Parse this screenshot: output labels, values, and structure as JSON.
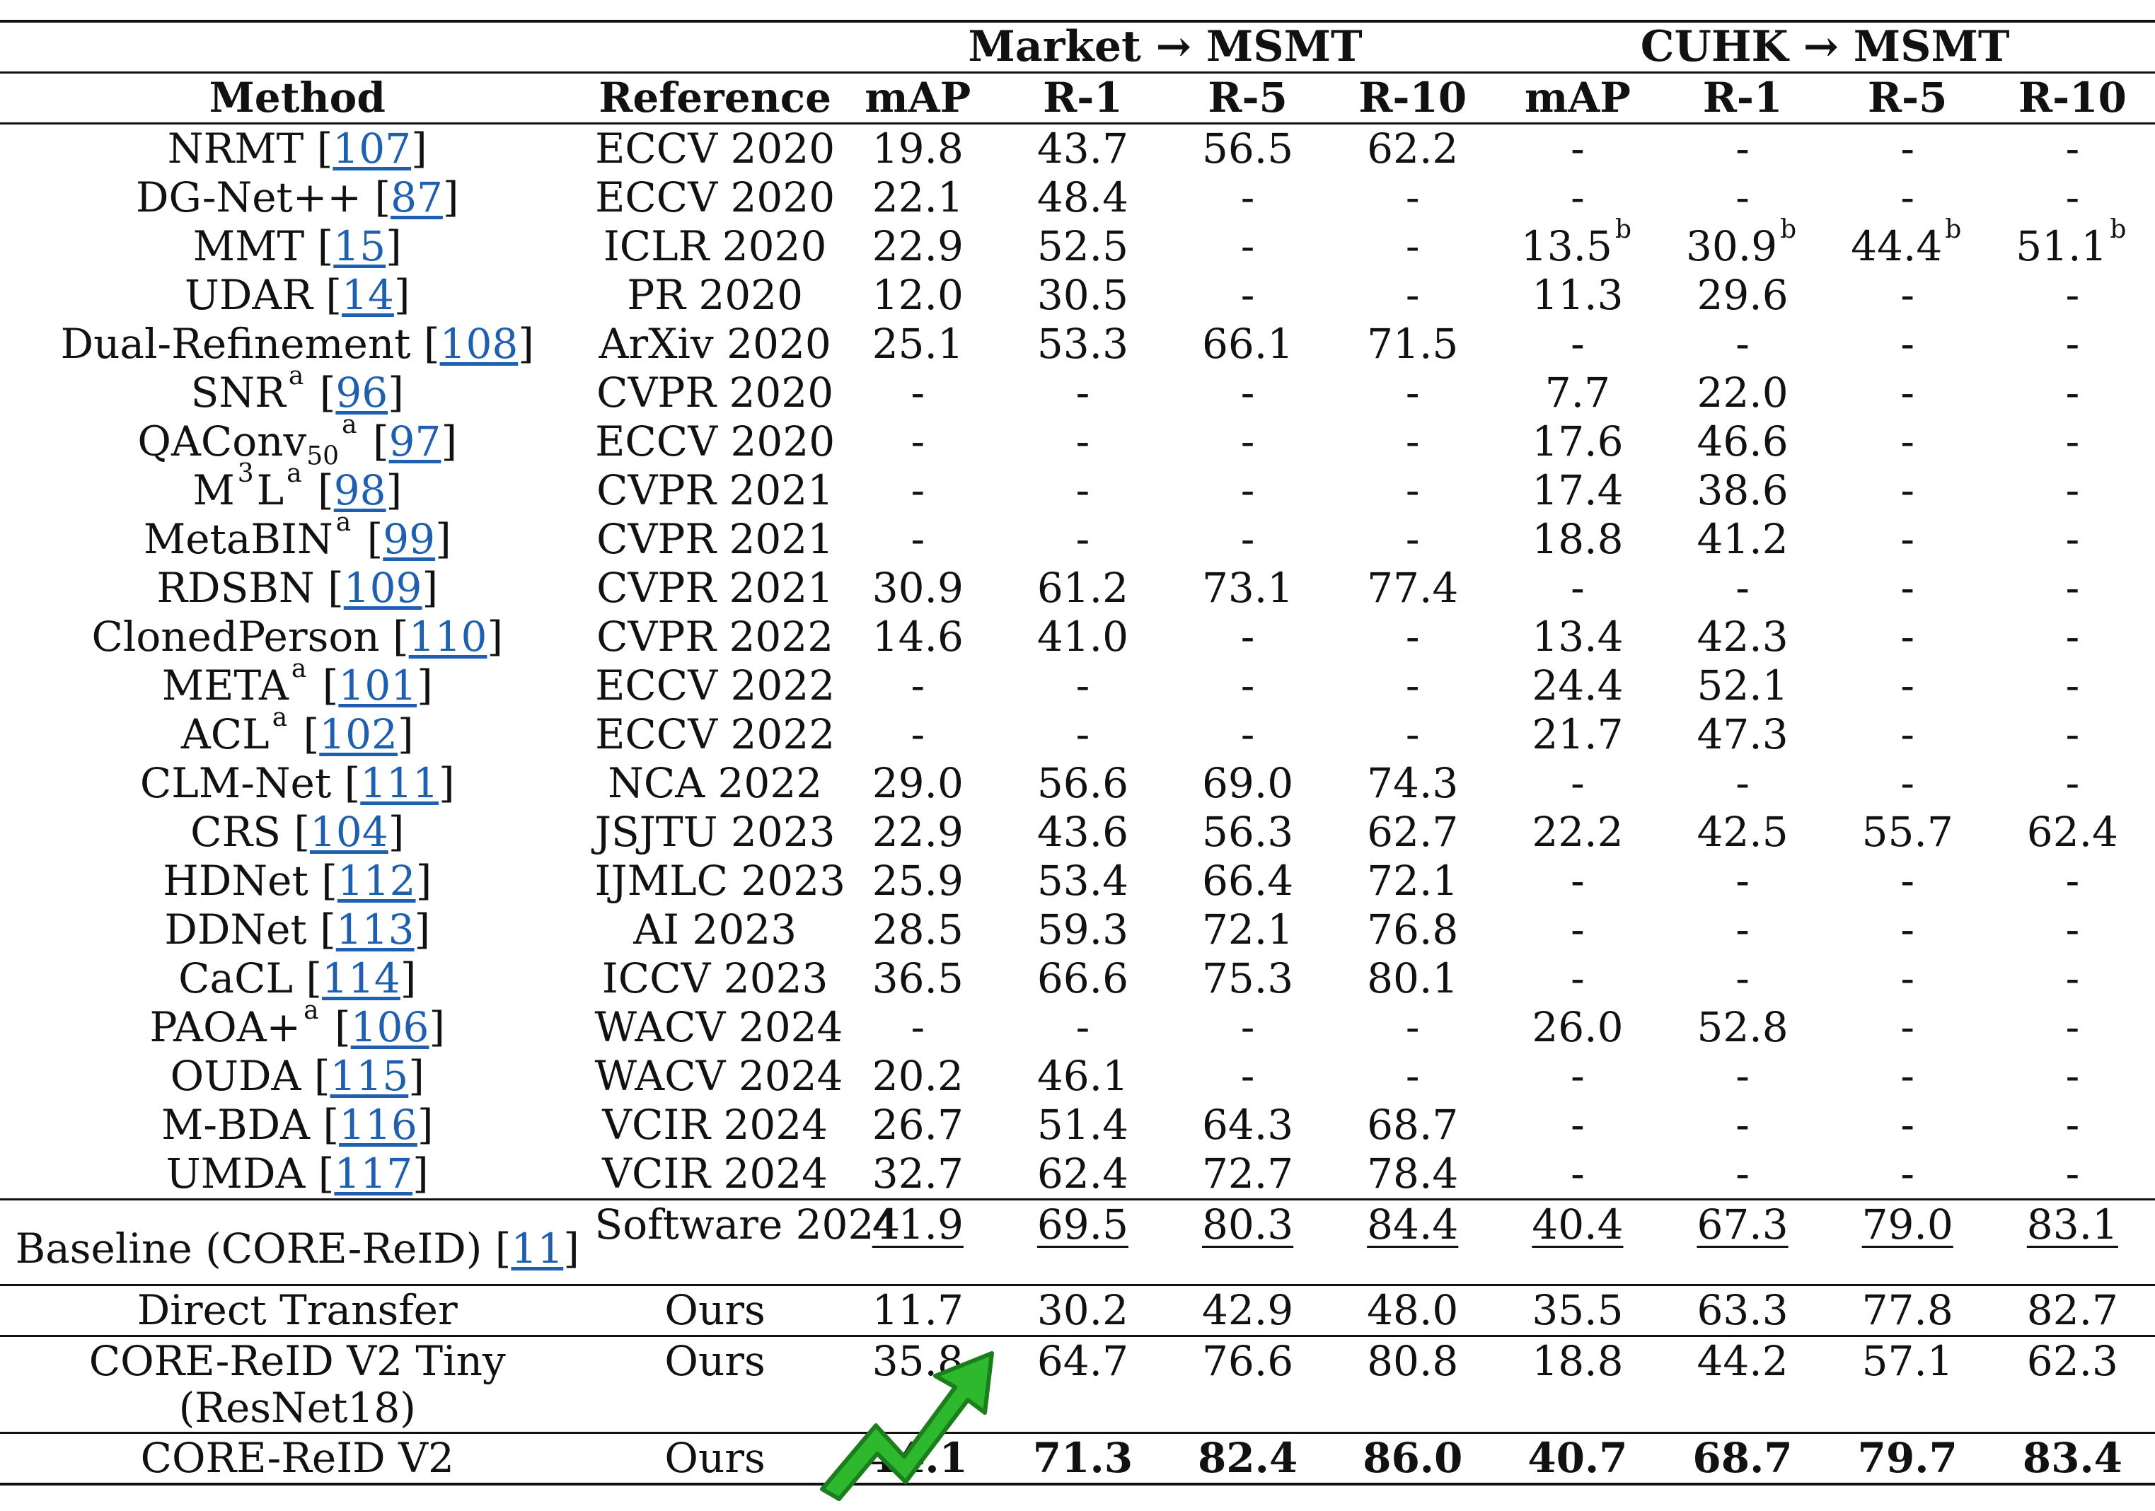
{
  "header": {
    "group1": "Market → MSMT",
    "group2": "CUHK → MSMT",
    "method": "Method",
    "reference": "Reference",
    "cols": [
      "mAP",
      "R-1",
      "R-5",
      "R-10",
      "mAP",
      "R-1",
      "R-5",
      "R-10"
    ]
  },
  "rows": [
    {
      "name": "NRMT",
      "sup": "",
      "sub": "",
      "cite": "107",
      "ref": "ECCV 2020",
      "v": [
        "19.8",
        "43.7",
        "56.5",
        "62.2",
        "-",
        "-",
        "-",
        "-"
      ]
    },
    {
      "name": "DG-Net++",
      "sup": "",
      "sub": "",
      "cite": "87",
      "ref": "ECCV 2020",
      "v": [
        "22.1",
        "48.4",
        "-",
        "-",
        "-",
        "-",
        "-",
        "-"
      ]
    },
    {
      "name": "MMT",
      "sup": "",
      "sub": "",
      "cite": "15",
      "ref": "ICLR 2020",
      "v": [
        "22.9",
        "52.5",
        "-",
        "-",
        "13.5",
        "30.9",
        "44.4",
        "51.1"
      ],
      "vsup": [
        "",
        "",
        "",
        "",
        "b",
        "b",
        "b",
        "b"
      ]
    },
    {
      "name": "UDAR",
      "sup": "",
      "sub": "",
      "cite": "14",
      "ref": "PR 2020",
      "v": [
        "12.0",
        "30.5",
        "-",
        "-",
        "11.3",
        "29.6",
        "-",
        "-"
      ]
    },
    {
      "name": "Dual-Refinement",
      "sup": "",
      "sub": "",
      "cite": "108",
      "ref": "ArXiv 2020",
      "v": [
        "25.1",
        "53.3",
        "66.1",
        "71.5",
        "-",
        "-",
        "-",
        "-"
      ]
    },
    {
      "name": "SNR",
      "sup": "a",
      "sub": "",
      "cite": "96",
      "ref": "CVPR 2020",
      "v": [
        "-",
        "-",
        "-",
        "-",
        "7.7",
        "22.0",
        "-",
        "-"
      ]
    },
    {
      "name": "QAConv",
      "sup": "a",
      "sub": "50",
      "cite": "97",
      "ref": "ECCV 2020",
      "v": [
        "-",
        "-",
        "-",
        "-",
        "17.6",
        "46.6",
        "-",
        "-"
      ]
    },
    {
      "name": "M",
      "namesup": "3",
      "name2": "L",
      "sup": "a",
      "sub": "",
      "cite": "98",
      "ref": "CVPR 2021",
      "v": [
        "-",
        "-",
        "-",
        "-",
        "17.4",
        "38.6",
        "-",
        "-"
      ]
    },
    {
      "name": "MetaBIN",
      "sup": "a",
      "sub": "",
      "cite": "99",
      "ref": "CVPR 2021",
      "v": [
        "-",
        "-",
        "-",
        "-",
        "18.8",
        "41.2",
        "-",
        "-"
      ]
    },
    {
      "name": "RDSBN",
      "sup": "",
      "sub": "",
      "cite": "109",
      "ref": "CVPR 2021",
      "v": [
        "30.9",
        "61.2",
        "73.1",
        "77.4",
        "-",
        "-",
        "-",
        "-"
      ]
    },
    {
      "name": "ClonedPerson",
      "sup": "",
      "sub": "",
      "cite": "110",
      "ref": "CVPR 2022",
      "v": [
        "14.6",
        "41.0",
        "-",
        "-",
        "13.4",
        "42.3",
        "-",
        "-"
      ]
    },
    {
      "name": "META",
      "sup": "a",
      "sub": "",
      "cite": "101",
      "ref": "ECCV 2022",
      "v": [
        "-",
        "-",
        "-",
        "-",
        "24.4",
        "52.1",
        "-",
        "-"
      ]
    },
    {
      "name": "ACL",
      "sup": "a",
      "sub": "",
      "cite": "102",
      "ref": "ECCV 2022",
      "v": [
        "-",
        "-",
        "-",
        "-",
        "21.7",
        "47.3",
        "-",
        "-"
      ]
    },
    {
      "name": "CLM-Net",
      "sup": "",
      "sub": "",
      "cite": "111",
      "ref": "NCA 2022",
      "v": [
        "29.0",
        "56.6",
        "69.0",
        "74.3",
        "-",
        "-",
        "-",
        "-"
      ]
    },
    {
      "name": "CRS",
      "sup": "",
      "sub": "",
      "cite": "104",
      "ref": "JSJTU 2023",
      "v": [
        "22.9",
        "43.6",
        "56.3",
        "62.7",
        "22.2",
        "42.5",
        "55.7",
        "62.4"
      ]
    },
    {
      "name": "HDNet",
      "sup": "",
      "sub": "",
      "cite": "112",
      "ref": "IJMLC 2023",
      "v": [
        "25.9",
        "53.4",
        "66.4",
        "72.1",
        "-",
        "-",
        "-",
        "-"
      ]
    },
    {
      "name": "DDNet",
      "sup": "",
      "sub": "",
      "cite": "113",
      "ref": "AI 2023",
      "v": [
        "28.5",
        "59.3",
        "72.1",
        "76.8",
        "-",
        "-",
        "-",
        "-"
      ]
    },
    {
      "name": "CaCL",
      "sup": "",
      "sub": "",
      "cite": "114",
      "ref": "ICCV 2023",
      "v": [
        "36.5",
        "66.6",
        "75.3",
        "80.1",
        "-",
        "-",
        "-",
        "-"
      ]
    },
    {
      "name": "PAOA+",
      "sup": "a",
      "sub": "",
      "cite": "106",
      "ref": "WACV 2024",
      "v": [
        "-",
        "-",
        "-",
        "-",
        "26.0",
        "52.8",
        "-",
        "-"
      ]
    },
    {
      "name": "OUDA",
      "sup": "",
      "sub": "",
      "cite": "115",
      "ref": "WACV 2024",
      "v": [
        "20.2",
        "46.1",
        "-",
        "-",
        "-",
        "-",
        "-",
        "-"
      ]
    },
    {
      "name": "M-BDA",
      "sup": "",
      "sub": "",
      "cite": "116",
      "ref": "VCIR 2024",
      "v": [
        "26.7",
        "51.4",
        "64.3",
        "68.7",
        "-",
        "-",
        "-",
        "-"
      ]
    },
    {
      "name": "UMDA",
      "sup": "",
      "sub": "",
      "cite": "117",
      "ref": "VCIR 2024",
      "v": [
        "32.7",
        "62.4",
        "72.7",
        "78.4",
        "-",
        "-",
        "-",
        "-"
      ]
    }
  ],
  "baseline": {
    "name": "Baseline (CORE-ReID)",
    "cite": "11",
    "ref": "Software 2024",
    "v": [
      "41.9",
      "69.5",
      "80.3",
      "84.4",
      "40.4",
      "67.3",
      "79.0",
      "83.1"
    ]
  },
  "ours": [
    {
      "name": "Direct Transfer",
      "ref": "Ours",
      "v": [
        "11.7",
        "30.2",
        "42.9",
        "48.0",
        "35.5",
        "63.3",
        "77.8",
        "82.7"
      ]
    },
    {
      "name": "CORE-ReID V2 Tiny",
      "name2": "(ResNet18)",
      "ref": "Ours",
      "v": [
        "35.8",
        "64.7",
        "76.6",
        "80.8",
        "18.8",
        "44.2",
        "57.1",
        "62.3"
      ]
    },
    {
      "name": "CORE-ReID V2",
      "ref": "Ours",
      "v": [
        "44.1",
        "71.3",
        "82.4",
        "86.0",
        "40.7",
        "68.7",
        "79.7",
        "83.4"
      ]
    }
  ],
  "decor": {
    "arrow_icon": "trend-up-arrow-icon",
    "arrow_color": "#2db82d",
    "link_color": "#1f5fb0"
  }
}
